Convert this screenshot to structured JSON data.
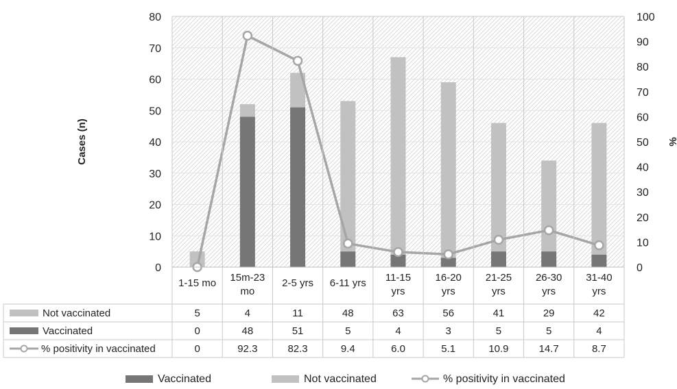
{
  "chart_data": {
    "type": "bar",
    "stacked": true,
    "secondary_type": "line",
    "categories": [
      [
        "1-15 mo"
      ],
      [
        "15m-23",
        "mo"
      ],
      [
        "2-5 yrs"
      ],
      [
        "6-11 yrs"
      ],
      [
        "11-15",
        "yrs"
      ],
      [
        "16-20",
        "yrs"
      ],
      [
        "21-25",
        "yrs"
      ],
      [
        "26-30",
        "yrs"
      ],
      [
        "31-40",
        "yrs"
      ]
    ],
    "series": [
      {
        "name": "Vaccinated",
        "axis": "left",
        "type": "bar",
        "color": "#767676",
        "values": [
          0,
          48,
          51,
          5,
          4,
          3,
          5,
          5,
          4
        ],
        "labels": [
          "0",
          "48",
          "51",
          "5",
          "4",
          "3",
          "5",
          "5",
          "4"
        ]
      },
      {
        "name": "Not vaccinated",
        "axis": "left",
        "type": "bar",
        "color": "#c1c1c1",
        "values": [
          5,
          4,
          11,
          48,
          63,
          56,
          41,
          29,
          42
        ],
        "labels": [
          "5",
          "4",
          "11",
          "48",
          "63",
          "56",
          "41",
          "29",
          "42"
        ]
      },
      {
        "name": "% positivity in vaccinated",
        "axis": "right",
        "type": "line",
        "color": "#a6a6a6",
        "values": [
          0,
          92.3,
          82.3,
          9.4,
          6.0,
          5.1,
          10.9,
          14.7,
          8.7
        ],
        "labels": [
          "0",
          "92.3",
          "82.3",
          "9.4",
          "6.0",
          "5.1",
          "10.9",
          "14.7",
          "8.7"
        ]
      }
    ],
    "table_order": [
      "Not vaccinated",
      "Vaccinated",
      "% positivity in vaccinated"
    ],
    "legend_order": [
      "Vaccinated",
      "Not vaccinated",
      "% positivity in vaccinated"
    ],
    "ylabel": "Cases (n)",
    "y2label": "%",
    "ylim": [
      0,
      80
    ],
    "y2lim": [
      0,
      100
    ],
    "yticks": [
      0,
      10,
      20,
      30,
      40,
      50,
      60,
      70,
      80
    ],
    "y2ticks": [
      0,
      10,
      20,
      30,
      40,
      50,
      60,
      70,
      80,
      90,
      100
    ],
    "plot_background": "hatched",
    "legend_position": "bottom",
    "data_table": true
  }
}
